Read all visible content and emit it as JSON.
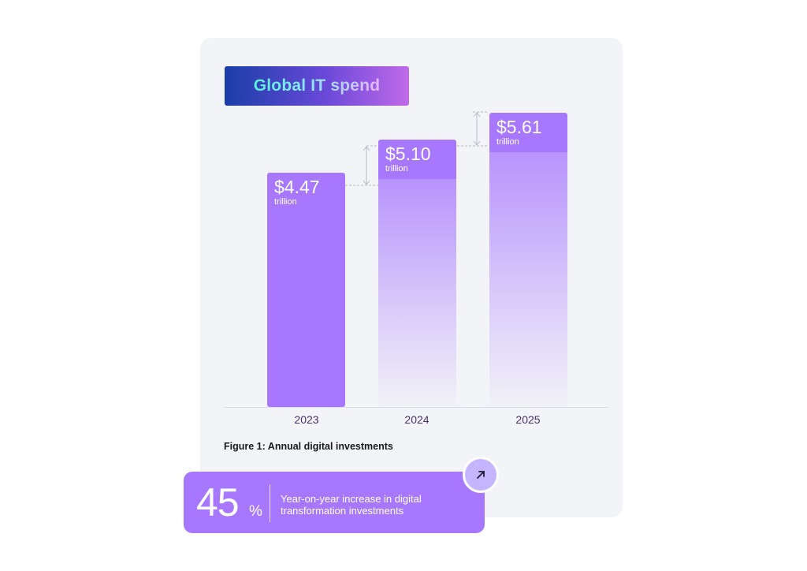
{
  "header": {
    "title": "Global IT spend"
  },
  "chart_data": {
    "type": "bar",
    "title": "Global IT spend",
    "categories": [
      "2023",
      "2024",
      "2025"
    ],
    "values": [
      4.47,
      5.1,
      5.61
    ],
    "value_labels": [
      "$4.47",
      "$5.10",
      "$5.61"
    ],
    "unit_label": "trillion",
    "ylim": [
      0,
      5.61
    ],
    "grid": false,
    "legend": "none",
    "bar_color": "#a778fe"
  },
  "caption": "Figure 1: Annual digital investments",
  "stat": {
    "value": "45",
    "unit": "%",
    "description": "Year-on-year increase in digital transformation investments",
    "icon": "arrow-up-right-icon"
  }
}
